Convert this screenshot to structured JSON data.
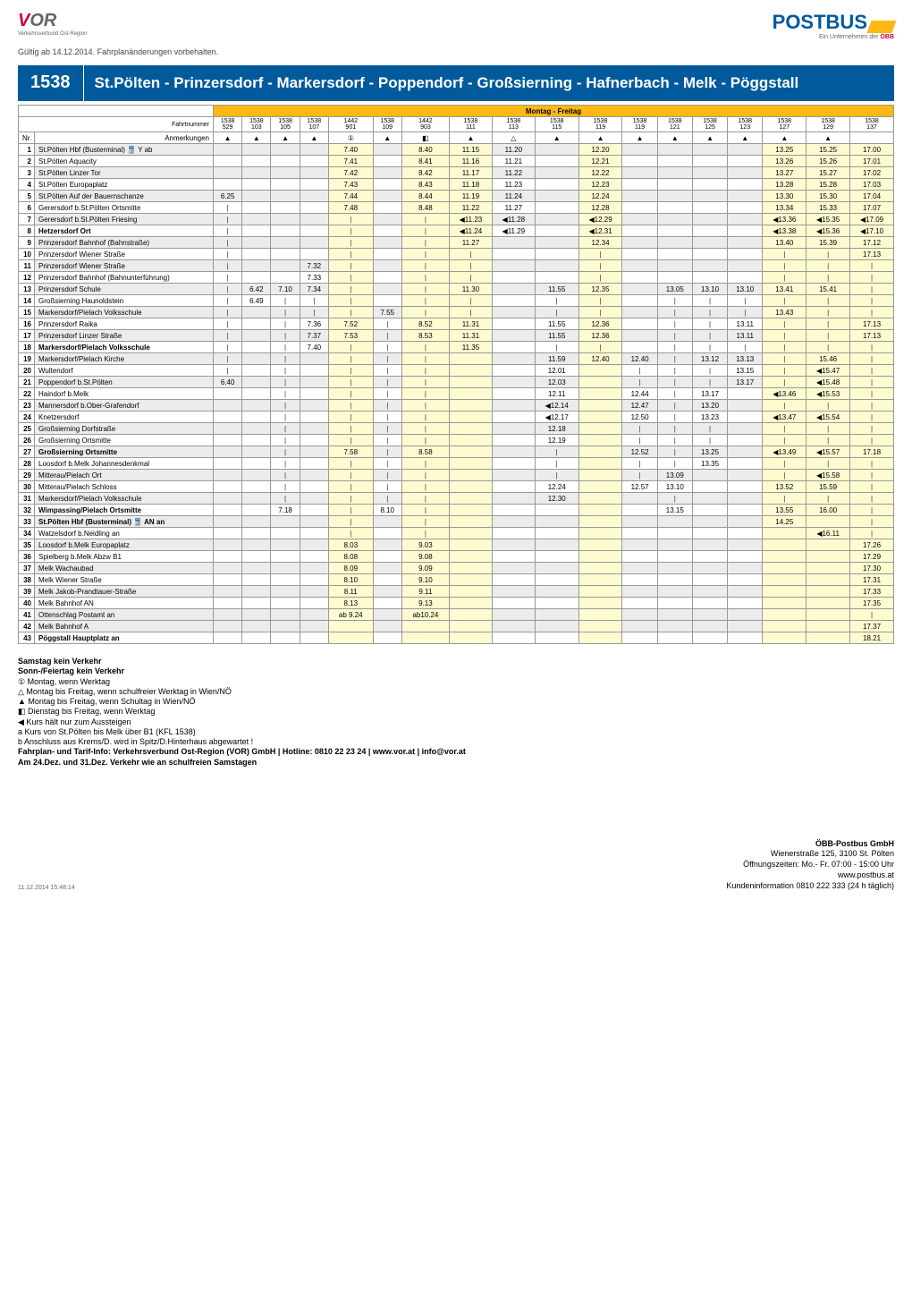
{
  "header": {
    "vor": "OR",
    "vor_prefix": "V",
    "vor_sub": "Verkehrsverbund\nOst-Region",
    "postbus": "POSTBUS",
    "postbus_sub_a": "Ein Unternehmen der ",
    "postbus_sub_b": "ÖBB",
    "valid": "Gültig ab 14.12.2014. Fahrplanänderungen vorbehalten."
  },
  "title": {
    "num": "1538",
    "name": "St.Pölten - Prinzersdorf - Markersdorf - Poppendorf - Großsierning - Hafnerbach - Melk - Pöggstall"
  },
  "daybar": "Montag - Freitag",
  "fahrt_lbl": "Fahrtnummer",
  "anm_lbl": "Anmerkungen",
  "nr_lbl": "Nr.",
  "fahrt": [
    "1538\n529",
    "1538\n103",
    "1538\n105",
    "1538\n107",
    "1442\n901",
    "1538\n109",
    "1442\n903",
    "1538\n111",
    "1538\n113",
    "1538\n115",
    "1538\n119",
    "1538\n119",
    "1538\n121",
    "1538\n125",
    "1538\n123",
    "1538\n127",
    "1538\n129",
    "1538\n137"
  ],
  "anm": [
    "▲",
    "▲",
    "▲",
    "▲",
    "①",
    "▲",
    "◧",
    "▲",
    "△",
    "▲",
    "▲",
    "▲",
    "▲",
    "▲",
    "▲",
    "▲",
    "▲",
    ""
  ],
  "stops": [
    {
      "n": 1,
      "s": "St.Pölten Hbf (Busterminal) 🚆 Y ab",
      "y": 1,
      "v": [
        "",
        "",
        "",
        "",
        "7.40",
        "",
        "8.40",
        "11.15",
        "11.20",
        "",
        "12.20",
        "",
        "",
        "",
        "",
        "13.25",
        "15.25",
        "17.00"
      ]
    },
    {
      "n": 2,
      "s": "St.Pölten Aquacity",
      "v": [
        "",
        "",
        "",
        "",
        "7.41",
        "",
        "8.41",
        "11.16",
        "11.21",
        "",
        "12.21",
        "",
        "",
        "",
        "",
        "13.26",
        "15.26",
        "17.01"
      ]
    },
    {
      "n": 3,
      "s": "St.Pölten Linzer Tor",
      "y": 1,
      "v": [
        "",
        "",
        "",
        "",
        "7.42",
        "",
        "8.42",
        "11.17",
        "11.22",
        "",
        "12.22",
        "",
        "",
        "",
        "",
        "13.27",
        "15.27",
        "17.02"
      ]
    },
    {
      "n": 4,
      "s": "St.Pölten Europaplatz",
      "v": [
        "",
        "",
        "",
        "",
        "7.43",
        "",
        "8.43",
        "11.18",
        "11.23",
        "",
        "12.23",
        "",
        "",
        "",
        "",
        "13.28",
        "15.28",
        "17.03"
      ]
    },
    {
      "n": 5,
      "s": "St.Pölten Auf der Bauernschanze",
      "y": 1,
      "v": [
        "6.25",
        "",
        "",
        "",
        "7.44",
        "",
        "8.44",
        "11.19",
        "11.24",
        "",
        "12.24",
        "",
        "",
        "",
        "",
        "13.30",
        "15.30",
        "17.04"
      ]
    },
    {
      "n": 6,
      "s": "Gerersdorf b.St.Pölten Ortsmitte",
      "v": [
        "|",
        "",
        "",
        "",
        "7.48",
        "",
        "8.48",
        "11.22",
        "11.27",
        "",
        "12.28",
        "",
        "",
        "",
        "",
        "13.34",
        "15.33",
        "17.07"
      ]
    },
    {
      "n": 7,
      "s": "Gerersdorf b.St.Pölten Friesing",
      "y": 1,
      "v": [
        "|",
        "",
        "",
        "",
        "|",
        "",
        "|",
        "◀11.23",
        "◀11.28",
        "",
        "◀12.29",
        "",
        "",
        "",
        "",
        "◀13.36",
        "◀15.35",
        "◀17.09"
      ]
    },
    {
      "n": 8,
      "s": "Hetzersdorf Ort",
      "b": 1,
      "v": [
        "|",
        "",
        "",
        "",
        "|",
        "",
        "|",
        "◀11.24",
        "◀11.29",
        "",
        "◀12.31",
        "",
        "",
        "",
        "",
        "◀13.38",
        "◀15.36",
        "◀17.10"
      ]
    },
    {
      "n": 9,
      "s": "Prinzersdorf Bahnhof (Bahnstraße)",
      "y": 1,
      "v": [
        "|",
        "",
        "",
        "",
        "|",
        "",
        "|",
        "11.27",
        "",
        "",
        "12.34",
        "",
        "",
        "",
        "",
        "13.40",
        "15.39",
        "17.12"
      ]
    },
    {
      "n": 10,
      "s": "Prinzersdorf Wiener Straße",
      "v": [
        "|",
        "",
        "",
        "",
        "|",
        "",
        "|",
        "|",
        "",
        "",
        "|",
        "",
        "",
        "",
        "",
        "|",
        "|",
        "17.13"
      ]
    },
    {
      "n": 11,
      "s": "Prinzersdorf Wiener Straße",
      "y": 1,
      "v": [
        "|",
        "",
        "",
        "7.32",
        "|",
        "",
        "|",
        "|",
        "",
        "",
        "|",
        "",
        "",
        "",
        "",
        "|",
        "|",
        "|"
      ]
    },
    {
      "n": 12,
      "s": "Prinzersdorf Bahnhof (Bahnunterführung)",
      "v": [
        "|",
        "",
        "",
        "7.33",
        "|",
        "",
        "|",
        "|",
        "",
        "",
        "|",
        "",
        "",
        "",
        "",
        "|",
        "|",
        "|"
      ]
    },
    {
      "n": 13,
      "s": "Prinzersdorf Schule",
      "y": 1,
      "v": [
        "|",
        "6.42",
        "7.10",
        "7.34",
        "|",
        "",
        "|",
        "11.30",
        "",
        "11.55",
        "12.35",
        "",
        "13.05",
        "13.10",
        "13.10",
        "13.41",
        "15.41",
        "|"
      ]
    },
    {
      "n": 14,
      "s": "Großsierning Haunoldstein",
      "v": [
        "|",
        "6.49",
        "|",
        "|",
        "|",
        "",
        "|",
        "|",
        "",
        "|",
        "|",
        "",
        "|",
        "|",
        "|",
        "|",
        "|",
        "|"
      ]
    },
    {
      "n": 15,
      "s": "Markersdorf/Pielach Volksschule",
      "y": 1,
      "v": [
        "|",
        "",
        "|",
        "|",
        "|",
        "7.55",
        "|",
        "|",
        "",
        "|",
        "|",
        "",
        "|",
        "|",
        "|",
        "13.43",
        "|",
        "|"
      ]
    },
    {
      "n": 16,
      "s": "Prinzersdorf Raika",
      "v": [
        "|",
        "",
        "|",
        "7.36",
        "7.52",
        "|",
        "8.52",
        "11.31",
        "",
        "11.55",
        "12.36",
        "",
        "|",
        "|",
        "13.11",
        "|",
        "|",
        "17.13"
      ]
    },
    {
      "n": 17,
      "s": "Prinzersdorf Linzer Straße",
      "y": 1,
      "v": [
        "|",
        "",
        "|",
        "7.37",
        "7.53",
        "|",
        "8.53",
        "11.31",
        "",
        "11.55",
        "12.36",
        "",
        "|",
        "|",
        "13.11",
        "|",
        "|",
        "17.13"
      ]
    },
    {
      "n": 18,
      "s": "Markersdorf/Pielach Volksschule",
      "b": 1,
      "v": [
        "|",
        "",
        "|",
        "7.40",
        "|",
        "|",
        "|",
        "11.35",
        "",
        "|",
        "|",
        "",
        "|",
        "|",
        "|",
        "|",
        "|",
        "|"
      ]
    },
    {
      "n": 19,
      "s": "Markersdorf/Pielach Kirche",
      "y": 1,
      "v": [
        "|",
        "",
        "|",
        "",
        "|",
        "|",
        "|",
        "",
        "",
        "11.59",
        "12.40",
        "12.40",
        "|",
        "13.12",
        "13.13",
        "|",
        "15.46",
        "|"
      ]
    },
    {
      "n": 20,
      "s": "Wultendorf",
      "v": [
        "|",
        "",
        "|",
        "",
        "|",
        "|",
        "|",
        "",
        "",
        "12.01",
        "",
        "|",
        "|",
        "|",
        "13.15",
        "|",
        "◀15.47",
        "|"
      ]
    },
    {
      "n": 21,
      "s": "Poppendorf b.St.Pölten",
      "y": 1,
      "v": [
        "6.40",
        "",
        "|",
        "",
        "|",
        "|",
        "|",
        "",
        "",
        "12.03",
        "",
        "|",
        "|",
        "|",
        "13.17",
        "|",
        "◀15.48",
        "|"
      ]
    },
    {
      "n": 22,
      "s": "Haindorf b.Melk",
      "v": [
        "",
        "",
        "|",
        "",
        "|",
        "|",
        "|",
        "",
        "",
        "12.11",
        "",
        "12.44",
        "|",
        "13.17",
        "",
        "◀13.46",
        "◀15.53",
        "|"
      ]
    },
    {
      "n": 23,
      "s": "Mannersdorf b.Ober-Grafendorf",
      "y": 1,
      "v": [
        "",
        "",
        "|",
        "",
        "|",
        "|",
        "|",
        "",
        "",
        "◀12.14",
        "",
        "12.47",
        "|",
        "13.20",
        "",
        "|",
        "|",
        "|"
      ]
    },
    {
      "n": 24,
      "s": "Knetzersdorf",
      "v": [
        "",
        "",
        "|",
        "",
        "|",
        "|",
        "|",
        "",
        "",
        "◀12.17",
        "",
        "12.50",
        "|",
        "13.23",
        "",
        "◀13.47",
        "◀15.54",
        "|"
      ]
    },
    {
      "n": 25,
      "s": "Großsierning Dorfstraße",
      "y": 1,
      "v": [
        "",
        "",
        "|",
        "",
        "|",
        "|",
        "|",
        "",
        "",
        "12.18",
        "",
        "|",
        "|",
        "|",
        "",
        "|",
        "|",
        "|"
      ]
    },
    {
      "n": 26,
      "s": "Großsierning Ortsmitte",
      "v": [
        "",
        "",
        "|",
        "",
        "|",
        "|",
        "|",
        "",
        "",
        "12.19",
        "",
        "|",
        "|",
        "|",
        "",
        "|",
        "|",
        "|"
      ]
    },
    {
      "n": 27,
      "s": "Großsierning Ortsmitte",
      "b": 1,
      "y": 1,
      "v": [
        "",
        "",
        "|",
        "",
        "7.58",
        "|",
        "8.58",
        "",
        "",
        "|",
        "",
        "12.52",
        "|",
        "13.25",
        "",
        "◀13.49",
        "◀15.57",
        "17.18"
      ]
    },
    {
      "n": 28,
      "s": "Loosdorf b.Melk Johannesdenkmal",
      "v": [
        "",
        "",
        "|",
        "",
        "|",
        "|",
        "|",
        "",
        "",
        "|",
        "",
        "|",
        "|",
        "13.35",
        "",
        "|",
        "|",
        "|"
      ]
    },
    {
      "n": 29,
      "s": "Mitterau/Pielach Ort",
      "y": 1,
      "v": [
        "",
        "",
        "|",
        "",
        "|",
        "|",
        "|",
        "",
        "",
        "|",
        "",
        "|",
        "13.09",
        "",
        "",
        "|",
        "◀15.58",
        "|"
      ]
    },
    {
      "n": 30,
      "s": "Mitterau/Pielach Schloss",
      "v": [
        "",
        "",
        "|",
        "",
        "|",
        "|",
        "|",
        "",
        "",
        "12.24",
        "",
        "12.57",
        "13.10",
        "",
        "",
        "13.52",
        "15.59",
        "|"
      ]
    },
    {
      "n": 31,
      "s": "Markersdorf/Pielach Volksschule",
      "y": 1,
      "v": [
        "",
        "",
        "|",
        "",
        "|",
        "|",
        "|",
        "",
        "",
        "12.30",
        "",
        "",
        "|",
        "",
        "",
        "|",
        "|",
        "|"
      ]
    },
    {
      "n": 32,
      "s": "Wimpassing/Pielach Ortsmitte",
      "b": 1,
      "v": [
        "",
        "",
        "7.18",
        "",
        "|",
        "8.10",
        "|",
        "",
        "",
        "",
        "",
        "",
        "13.15",
        "",
        "",
        "13.55",
        "16.00",
        "|"
      ]
    },
    {
      "n": 33,
      "s": "St.Pölten Hbf (Busterminal) 🚆 AN an",
      "b": 1,
      "y": 1,
      "v": [
        "",
        "",
        "",
        "",
        "|",
        "",
        "|",
        "",
        "",
        "",
        "",
        "",
        "",
        "",
        "",
        "14.25",
        "",
        "|"
      ]
    },
    {
      "n": 34,
      "s": "Watzelsdorf b.Neidling                      an",
      "v": [
        "",
        "",
        "",
        "",
        "|",
        "",
        "|",
        "",
        "",
        "",
        "",
        "",
        "",
        "",
        "",
        "",
        "◀16.11",
        "|"
      ]
    },
    {
      "n": 35,
      "s": "Loosdorf b.Melk Europaplatz",
      "y": 1,
      "v": [
        "",
        "",
        "",
        "",
        "8.03",
        "",
        "9.03",
        "",
        "",
        "",
        "",
        "",
        "",
        "",
        "",
        "",
        "",
        "17.26"
      ]
    },
    {
      "n": 36,
      "s": "Spielberg b.Melk Abzw B1",
      "v": [
        "",
        "",
        "",
        "",
        "8.08",
        "",
        "9.08",
        "",
        "",
        "",
        "",
        "",
        "",
        "",
        "",
        "",
        "",
        "17.29"
      ]
    },
    {
      "n": 37,
      "s": "Melk Wachaubad",
      "y": 1,
      "v": [
        "",
        "",
        "",
        "",
        "8.09",
        "",
        "9.09",
        "",
        "",
        "",
        "",
        "",
        "",
        "",
        "",
        "",
        "",
        "17.30"
      ]
    },
    {
      "n": 38,
      "s": "Melk Wiener Straße",
      "v": [
        "",
        "",
        "",
        "",
        "8.10",
        "",
        "9.10",
        "",
        "",
        "",
        "",
        "",
        "",
        "",
        "",
        "",
        "",
        "17.31"
      ]
    },
    {
      "n": 39,
      "s": "Melk Jakob-Prandtauer-Straße",
      "y": 1,
      "v": [
        "",
        "",
        "",
        "",
        "8.11",
        "",
        "9.11",
        "",
        "",
        "",
        "",
        "",
        "",
        "",
        "",
        "",
        "",
        "17.33"
      ]
    },
    {
      "n": 40,
      "s": "Melk Bahnhof AN",
      "v": [
        "",
        "",
        "",
        "",
        "8.13",
        "",
        "9.13",
        "",
        "",
        "",
        "",
        "",
        "",
        "",
        "",
        "",
        "",
        "17.35"
      ]
    },
    {
      "n": 41,
      "s": "Ottenschlag Postamt                         an",
      "y": 1,
      "v": [
        "",
        "",
        "",
        "",
        "ab 9.24",
        "",
        "ab10.24",
        "",
        "",
        "",
        "",
        "",
        "",
        "",
        "",
        "",
        "",
        "|"
      ]
    },
    {
      "n": 42,
      "s": "Melk Bahnhof A",
      "y": 1,
      "v": [
        "",
        "",
        "",
        "",
        "",
        "",
        "",
        "",
        "",
        "",
        "",
        "",
        "",
        "",
        "",
        "",
        "",
        "17.37"
      ]
    },
    {
      "n": 43,
      "s": "Pöggstall Hauptplatz                       an",
      "b": 1,
      "v": [
        "",
        "",
        "",
        "",
        "",
        "",
        "",
        "",
        "",
        "",
        "",
        "",
        "",
        "",
        "",
        "",
        "",
        "18.21"
      ]
    }
  ],
  "yelCols": [
    4,
    6,
    7,
    10,
    15,
    16,
    17
  ],
  "notes": {
    "h1": "Samstag kein Verkehr",
    "h2": "Sonn-/Feiertag kein Verkehr",
    "lines": [
      "①  Montag, wenn Werktag",
      "△  Montag bis Freitag, wenn schulfreier Werktag in Wien/NÖ",
      "▲  Montag bis Freitag, wenn Schultag in Wien/NÖ",
      "◧  Dienstag bis Freitag, wenn Werktag",
      "◀  Kurs hält nur zum Aussteigen",
      "a  Kurs von  St.Pölten bis Melk über B1 (KFL 1538)",
      "b  Anschluss aus Krems/D. wird  in Spitz/D.Hinterhaus abgewartet !"
    ],
    "info": "Fahrplan- und Tarif-Info: Verkehrsverbund Ost-Region (VOR) GmbH | Hotline: 0810 22 23 24 | www.vor.at | info@vor.at",
    "am": "Am 24.Dez. und 31.Dez. Verkehr wie an schulfreien Samstagen"
  },
  "footer": {
    "left": "11.12.2014 15:48:14",
    "r1": "ÖBB-Postbus GmbH",
    "r2": "Wienerstraße 125, 3100 St. Pölten",
    "r3": "Öffnungszeiten: Mo.- Fr. 07:00 - 15:00 Uhr",
    "r4": "www.postbus.at",
    "r5": "Kundeninformation 0810 222 333 (24 h täglich)"
  }
}
